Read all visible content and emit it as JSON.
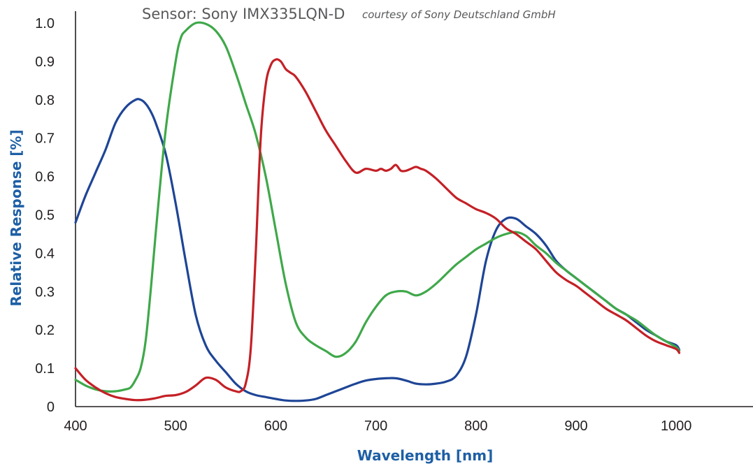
{
  "chart_data": {
    "type": "line",
    "title": "Sensor: Sony IMX335LQN-D",
    "subtitle": "courtesy of Sony Deutschland GmbH",
    "xlabel": "Wavelength [nm]",
    "ylabel": "Relative Response [%]",
    "xlim": [
      400,
      1077
    ],
    "ylim": [
      0,
      1.0
    ],
    "x_ticks": [
      "400",
      "500",
      "600",
      "700",
      "800",
      "900",
      "1000"
    ],
    "y_ticks": [
      "0",
      "0.1",
      "0.2",
      "0.3",
      "0.4",
      "0.5",
      "0.6",
      "0.7",
      "0.8",
      "0.9",
      "1.0"
    ],
    "grid": false,
    "legend": "none",
    "series": [
      {
        "color": "#1e4596",
        "x": [
          400,
          410,
          420,
          430,
          440,
          450,
          460,
          465,
          470,
          475,
          480,
          490,
          500,
          510,
          520,
          530,
          540,
          550,
          560,
          570,
          580,
          590,
          600,
          610,
          620,
          630,
          640,
          650,
          660,
          670,
          680,
          690,
          700,
          710,
          720,
          730,
          740,
          750,
          760,
          770,
          780,
          790,
          800,
          810,
          820,
          830,
          840,
          850,
          860,
          870,
          880,
          890,
          900,
          910,
          920,
          930,
          940,
          950,
          960,
          970,
          980,
          990,
          1000,
          1003
        ],
        "y": [
          0.48,
          0.55,
          0.61,
          0.67,
          0.74,
          0.78,
          0.8,
          0.8,
          0.79,
          0.77,
          0.74,
          0.66,
          0.53,
          0.38,
          0.24,
          0.16,
          0.12,
          0.09,
          0.06,
          0.04,
          0.03,
          0.025,
          0.02,
          0.016,
          0.015,
          0.016,
          0.02,
          0.03,
          0.04,
          0.05,
          0.06,
          0.068,
          0.072,
          0.074,
          0.074,
          0.068,
          0.06,
          0.058,
          0.06,
          0.065,
          0.08,
          0.13,
          0.24,
          0.38,
          0.46,
          0.49,
          0.49,
          0.47,
          0.45,
          0.42,
          0.38,
          0.355,
          0.335,
          0.315,
          0.295,
          0.275,
          0.255,
          0.24,
          0.22,
          0.2,
          0.185,
          0.17,
          0.16,
          0.148
        ]
      },
      {
        "color": "#3fa84a",
        "x": [
          400,
          410,
          420,
          430,
          440,
          450,
          455,
          460,
          465,
          470,
          475,
          480,
          490,
          500,
          505,
          510,
          520,
          530,
          540,
          550,
          560,
          570,
          580,
          590,
          600,
          610,
          620,
          630,
          640,
          650,
          660,
          670,
          680,
          690,
          700,
          710,
          720,
          730,
          740,
          750,
          760,
          770,
          780,
          790,
          800,
          810,
          820,
          830,
          840,
          850,
          860,
          870,
          880,
          890,
          900,
          910,
          920,
          930,
          940,
          950,
          960,
          970,
          980,
          990,
          1000,
          1003
        ],
        "y": [
          0.07,
          0.055,
          0.045,
          0.04,
          0.04,
          0.045,
          0.05,
          0.07,
          0.1,
          0.17,
          0.3,
          0.45,
          0.72,
          0.9,
          0.96,
          0.98,
          1.0,
          0.998,
          0.98,
          0.94,
          0.87,
          0.79,
          0.71,
          0.6,
          0.46,
          0.32,
          0.22,
          0.18,
          0.16,
          0.145,
          0.13,
          0.14,
          0.17,
          0.22,
          0.26,
          0.29,
          0.3,
          0.3,
          0.29,
          0.3,
          0.32,
          0.345,
          0.37,
          0.39,
          0.41,
          0.425,
          0.44,
          0.45,
          0.455,
          0.445,
          0.42,
          0.4,
          0.375,
          0.355,
          0.335,
          0.315,
          0.295,
          0.275,
          0.255,
          0.24,
          0.225,
          0.205,
          0.185,
          0.17,
          0.155,
          0.145
        ]
      },
      {
        "color": "#c42026",
        "x": [
          400,
          410,
          420,
          430,
          440,
          450,
          460,
          470,
          480,
          490,
          500,
          510,
          520,
          530,
          540,
          550,
          560,
          565,
          570,
          575,
          580,
          585,
          590,
          595,
          600,
          605,
          610,
          615,
          620,
          630,
          640,
          650,
          660,
          670,
          680,
          690,
          700,
          705,
          710,
          715,
          720,
          725,
          730,
          735,
          740,
          745,
          750,
          760,
          770,
          780,
          790,
          800,
          810,
          820,
          830,
          840,
          850,
          860,
          870,
          880,
          890,
          900,
          910,
          920,
          930,
          940,
          950,
          960,
          970,
          980,
          990,
          1000,
          1003
        ],
        "y": [
          0.1,
          0.07,
          0.05,
          0.035,
          0.025,
          0.02,
          0.017,
          0.018,
          0.022,
          0.028,
          0.03,
          0.038,
          0.055,
          0.075,
          0.07,
          0.05,
          0.04,
          0.04,
          0.06,
          0.15,
          0.4,
          0.7,
          0.84,
          0.89,
          0.905,
          0.9,
          0.88,
          0.87,
          0.86,
          0.82,
          0.77,
          0.72,
          0.68,
          0.64,
          0.61,
          0.62,
          0.615,
          0.62,
          0.615,
          0.62,
          0.63,
          0.615,
          0.615,
          0.62,
          0.625,
          0.62,
          0.615,
          0.595,
          0.57,
          0.545,
          0.53,
          0.515,
          0.505,
          0.49,
          0.465,
          0.45,
          0.43,
          0.41,
          0.38,
          0.35,
          0.33,
          0.315,
          0.295,
          0.275,
          0.255,
          0.24,
          0.225,
          0.205,
          0.185,
          0.17,
          0.16,
          0.15,
          0.14
        ]
      }
    ]
  }
}
